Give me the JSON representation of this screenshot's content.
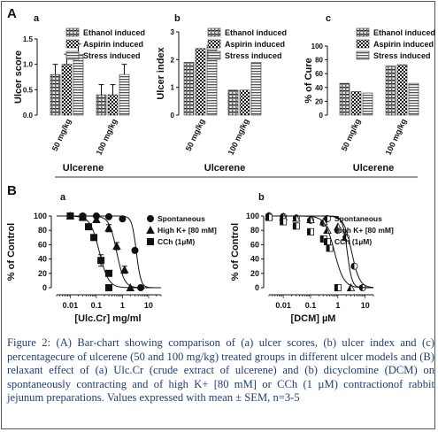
{
  "panel_labels": {
    "A": "A",
    "B": "B",
    "a": "a",
    "b": "b",
    "c": "c"
  },
  "caption": "Figure 2: (A) Bar-chart showing comparison of (a) ulcer scores, (b) ulcer index and (c) percentagecure of ulcerene (50 and 100 mg/kg) treated groups in different ulcer models and (B) relaxant effect of (a) Ulc.Cr (crude extract of ulcerene) and (b) dicyclomine (DCM) on spontaneously contracting and of high K+ [80 mM] or CCh (1 µM) contractionof rabbit jejunum preparations. Values expressed with mean ± SEM, n=3-5",
  "colors": {
    "caption": "#1f3d7a",
    "frame": "#555555"
  },
  "chart_data": [
    {
      "id": "Aa",
      "panel": "a",
      "type": "bar",
      "ylabel": "Ulcer score",
      "xlabel": "Ulcerene",
      "categories": [
        "50 mg/kg",
        "100 mg/kg"
      ],
      "ylim": [
        0,
        1.5
      ],
      "yticks": [
        "0.0",
        "0.5",
        "1.0",
        "1.5"
      ],
      "ytickvals": [
        0,
        0.5,
        1.0,
        1.5
      ],
      "series": [
        {
          "name": "Ethanol induced",
          "pattern": "hatch",
          "values": [
            0.8,
            0.4
          ],
          "err": [
            0.2,
            0.2
          ]
        },
        {
          "name": "Aspirin induced",
          "pattern": "check",
          "values": [
            1.0,
            0.4
          ],
          "err": [
            0.2,
            0.2
          ]
        },
        {
          "name": "Stress induced",
          "pattern": "hline",
          "values": [
            1.2,
            0.8
          ],
          "err": [
            0.2,
            0.2
          ]
        }
      ]
    },
    {
      "id": "Ab",
      "panel": "b",
      "type": "bar",
      "ylabel": "Ulcer index",
      "xlabel": "Ulcerene",
      "categories": [
        "50 mg/kg",
        "100 mg/kg"
      ],
      "ylim": [
        0,
        3
      ],
      "yticks": [
        "0",
        "1",
        "2",
        "3"
      ],
      "ytickvals": [
        0,
        1,
        2,
        3
      ],
      "series": [
        {
          "name": "Ethanol induced",
          "pattern": "hatch",
          "values": [
            1.9,
            0.9
          ]
        },
        {
          "name": "Aspirin induced",
          "pattern": "check",
          "values": [
            2.4,
            0.9
          ]
        },
        {
          "name": "Stress induced",
          "pattern": "hline",
          "values": [
            2.5,
            1.9
          ]
        }
      ]
    },
    {
      "id": "Ac",
      "panel": "c",
      "type": "bar",
      "ylabel": "% of Cure",
      "xlabel": "Ulcerene",
      "categories": [
        "50 mg/kg",
        "100 mg/kg"
      ],
      "ylim": [
        0,
        100
      ],
      "yticks": [
        "0",
        "20",
        "40",
        "60",
        "80",
        "100"
      ],
      "ytickvals": [
        0,
        20,
        40,
        60,
        80,
        100
      ],
      "series": [
        {
          "name": "Ethanol induced",
          "pattern": "hatch",
          "values": [
            46,
            71
          ]
        },
        {
          "name": "Aspirin induced",
          "pattern": "check",
          "values": [
            34,
            73
          ]
        },
        {
          "name": "Stress induced",
          "pattern": "hline",
          "values": [
            32,
            46
          ]
        }
      ]
    },
    {
      "id": "Ba",
      "panel": "a",
      "type": "line",
      "xscale": "log",
      "ylabel": "% of Control",
      "xlabel": "[Ulc.Cr] mg/ml",
      "xlim": [
        0.003,
        30
      ],
      "xticks": [
        "0.01",
        "0.1",
        "1",
        "10"
      ],
      "xtickvals": [
        0.01,
        0.1,
        1,
        10
      ],
      "ylim": [
        0,
        100
      ],
      "yticks": [
        "0",
        "20",
        "40",
        "60",
        "80",
        "100"
      ],
      "ytickvals": [
        0,
        20,
        40,
        60,
        80,
        100
      ],
      "series": [
        {
          "name": "Spontaneous",
          "marker": "circle",
          "ec50": 3.4,
          "hill": 5,
          "points": [
            {
              "x": 0.01,
              "y": 100
            },
            {
              "x": 0.03,
              "y": 100
            },
            {
              "x": 0.1,
              "y": 100
            },
            {
              "x": 0.3,
              "y": 99
            },
            {
              "x": 1,
              "y": 96
            },
            {
              "x": 3,
              "y": 52
            },
            {
              "x": 5,
              "y": 0
            }
          ]
        },
        {
          "name": "High K+ [80 mM]",
          "marker": "triangle",
          "ec50": 0.6,
          "hill": 3,
          "points": [
            {
              "x": 0.01,
              "y": 100
            },
            {
              "x": 0.03,
              "y": 99
            },
            {
              "x": 0.1,
              "y": 95
            },
            {
              "x": 0.3,
              "y": 83,
              "err": 5
            },
            {
              "x": 0.6,
              "y": 58,
              "err": 5
            },
            {
              "x": 1.2,
              "y": 25,
              "err": 5
            },
            {
              "x": 2,
              "y": 0
            }
          ]
        },
        {
          "name": "CCh (1µM)",
          "marker": "square",
          "ec50": 0.13,
          "hill": 2.5,
          "points": [
            {
              "x": 0.01,
              "y": 100
            },
            {
              "x": 0.03,
              "y": 98
            },
            {
              "x": 0.05,
              "y": 85
            },
            {
              "x": 0.08,
              "y": 70
            },
            {
              "x": 0.15,
              "y": 38,
              "err": 8
            },
            {
              "x": 0.3,
              "y": 20
            },
            {
              "x": 0.3,
              "y": 0
            }
          ]
        }
      ]
    },
    {
      "id": "Bb",
      "panel": "b",
      "type": "line",
      "xscale": "log",
      "ylabel": "% of Control",
      "xlabel": "[DCM] µM",
      "xlim": [
        0.003,
        20
      ],
      "xticks": [
        "0.01",
        "0.1",
        "1",
        "10"
      ],
      "xtickvals": [
        0.01,
        0.1,
        1,
        10
      ],
      "ylim": [
        0,
        100
      ],
      "yticks": [
        "0",
        "20",
        "40",
        "60",
        "80",
        "100"
      ],
      "ytickvals": [
        0,
        20,
        40,
        60,
        80,
        100
      ],
      "series": [
        {
          "name": "Spontaneous",
          "marker": "half-circle",
          "ec50": 3.2,
          "hill": 3,
          "points": [
            {
              "x": 0.003,
              "y": 100
            },
            {
              "x": 0.01,
              "y": 99
            },
            {
              "x": 0.03,
              "y": 97
            },
            {
              "x": 0.1,
              "y": 94
            },
            {
              "x": 0.3,
              "y": 90
            },
            {
              "x": 1,
              "y": 80
            },
            {
              "x": 2,
              "y": 70
            },
            {
              "x": 4,
              "y": 30
            },
            {
              "x": 8,
              "y": 0
            }
          ]
        },
        {
          "name": "High K+ [80 mM]",
          "marker": "half-triangle",
          "ec50": 2.2,
          "hill": 5,
          "points": [
            {
              "x": 0.003,
              "y": 100
            },
            {
              "x": 0.01,
              "y": 99
            },
            {
              "x": 0.03,
              "y": 97
            },
            {
              "x": 0.1,
              "y": 95
            },
            {
              "x": 0.3,
              "y": 92
            },
            {
              "x": 1,
              "y": 85
            },
            {
              "x": 2,
              "y": 70
            },
            {
              "x": 3,
              "y": 0
            }
          ]
        },
        {
          "name": "CCh (1µM)",
          "marker": "half-square",
          "ec50": 0.75,
          "hill": 2.5,
          "points": [
            {
              "x": 0.003,
              "y": 98
            },
            {
              "x": 0.01,
              "y": 92
            },
            {
              "x": 0.03,
              "y": 86
            },
            {
              "x": 0.1,
              "y": 78
            },
            {
              "x": 0.3,
              "y": 68
            },
            {
              "x": 0.5,
              "y": 55
            },
            {
              "x": 1,
              "y": 0
            }
          ]
        }
      ]
    }
  ]
}
